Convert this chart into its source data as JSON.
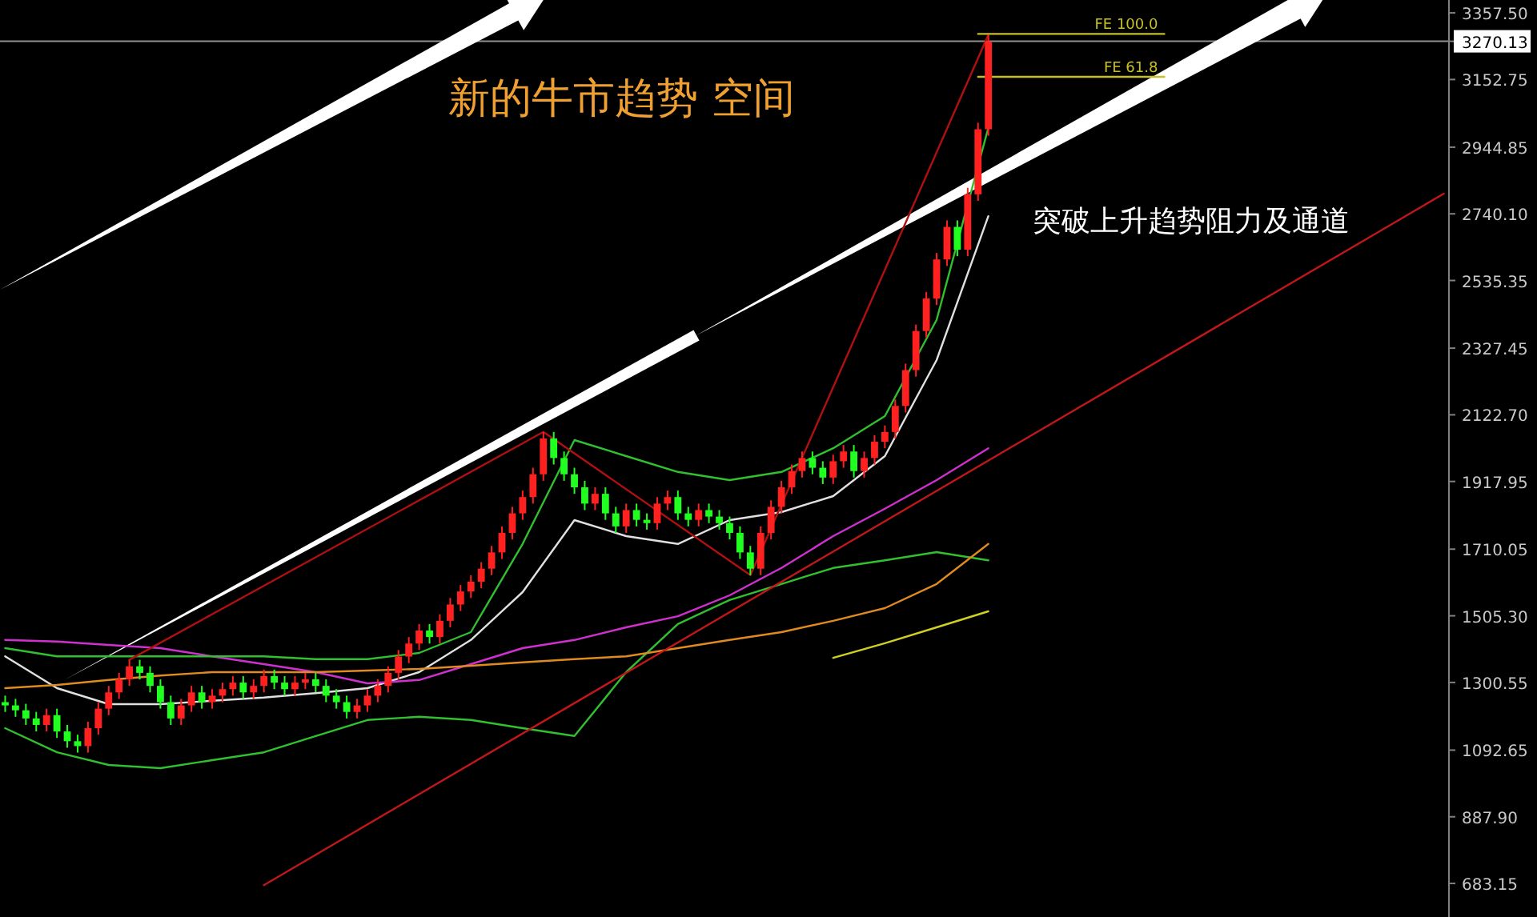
{
  "chart_data": {
    "type": "candlestick",
    "categories": [
      null,
      null,
      null,
      null,
      null,
      null,
      null,
      null,
      null,
      null,
      null,
      null,
      null,
      null,
      null,
      null,
      null,
      null,
      null,
      null,
      null,
      null,
      null,
      null,
      null,
      null,
      null,
      null,
      null,
      null,
      null,
      null,
      null,
      null,
      null,
      null,
      null,
      null,
      null,
      null,
      null,
      null,
      null,
      null,
      null,
      null,
      null,
      null,
      null,
      null,
      null,
      null,
      null,
      null,
      null,
      null,
      null,
      null,
      null,
      null,
      null,
      null,
      null,
      null,
      null,
      null,
      null,
      null,
      null,
      null,
      null,
      null,
      null,
      null,
      null,
      null,
      null,
      null,
      null,
      null,
      null,
      null,
      null,
      null,
      null,
      null,
      null,
      null,
      null,
      null,
      null,
      null,
      null,
      null,
      null,
      null,
      null,
      null,
      null,
      null,
      null,
      null,
      null,
      null,
      null,
      null,
      null,
      null,
      null,
      null,
      null,
      null,
      null,
      null,
      null,
      null,
      null,
      null,
      null,
      null,
      null,
      null,
      null,
      null,
      null,
      null,
      null,
      null,
      null,
      null,
      null,
      null,
      null,
      null,
      null,
      null,
      null,
      null,
      null,
      null
    ],
    "ohlc": [
      [
        1240,
        1260,
        1210,
        1230
      ],
      [
        1230,
        1250,
        1195,
        1215
      ],
      [
        1215,
        1235,
        1170,
        1190
      ],
      [
        1190,
        1210,
        1150,
        1170
      ],
      [
        1170,
        1220,
        1150,
        1200
      ],
      [
        1200,
        1220,
        1130,
        1150
      ],
      [
        1150,
        1170,
        1100,
        1120
      ],
      [
        1120,
        1140,
        1085,
        1105
      ],
      [
        1105,
        1180,
        1085,
        1160
      ],
      [
        1160,
        1240,
        1140,
        1220
      ],
      [
        1220,
        1290,
        1200,
        1270
      ],
      [
        1270,
        1330,
        1250,
        1310
      ],
      [
        1310,
        1370,
        1290,
        1350
      ],
      [
        1350,
        1370,
        1310,
        1330
      ],
      [
        1330,
        1350,
        1270,
        1290
      ],
      [
        1290,
        1310,
        1220,
        1240
      ],
      [
        1240,
        1260,
        1170,
        1190
      ],
      [
        1190,
        1250,
        1170,
        1230
      ],
      [
        1230,
        1290,
        1210,
        1270
      ],
      [
        1270,
        1290,
        1220,
        1240
      ],
      [
        1240,
        1280,
        1220,
        1260
      ],
      [
        1260,
        1300,
        1240,
        1280
      ],
      [
        1280,
        1320,
        1260,
        1300
      ],
      [
        1300,
        1320,
        1250,
        1270
      ],
      [
        1270,
        1310,
        1250,
        1290
      ],
      [
        1290,
        1340,
        1270,
        1320
      ],
      [
        1320,
        1340,
        1280,
        1300
      ],
      [
        1300,
        1320,
        1260,
        1280
      ],
      [
        1280,
        1320,
        1260,
        1300
      ],
      [
        1300,
        1330,
        1280,
        1310
      ],
      [
        1310,
        1330,
        1270,
        1290
      ],
      [
        1290,
        1310,
        1240,
        1260
      ],
      [
        1260,
        1280,
        1220,
        1240
      ],
      [
        1240,
        1260,
        1190,
        1210
      ],
      [
        1210,
        1250,
        1190,
        1230
      ],
      [
        1230,
        1280,
        1210,
        1260
      ],
      [
        1260,
        1310,
        1240,
        1290
      ],
      [
        1290,
        1350,
        1270,
        1330
      ],
      [
        1330,
        1400,
        1310,
        1380
      ],
      [
        1380,
        1440,
        1360,
        1420
      ],
      [
        1420,
        1480,
        1400,
        1460
      ],
      [
        1460,
        1480,
        1420,
        1440
      ],
      [
        1440,
        1510,
        1420,
        1490
      ],
      [
        1490,
        1560,
        1470,
        1540
      ],
      [
        1540,
        1600,
        1520,
        1580
      ],
      [
        1580,
        1630,
        1560,
        1610
      ],
      [
        1610,
        1670,
        1590,
        1650
      ],
      [
        1650,
        1720,
        1630,
        1700
      ],
      [
        1700,
        1780,
        1680,
        1760
      ],
      [
        1760,
        1840,
        1740,
        1820
      ],
      [
        1820,
        1890,
        1800,
        1870
      ],
      [
        1870,
        1960,
        1850,
        1940
      ],
      [
        1940,
        2070,
        1920,
        2050
      ],
      [
        2050,
        2070,
        1970,
        1990
      ],
      [
        1990,
        2010,
        1920,
        1940
      ],
      [
        1940,
        1960,
        1880,
        1900
      ],
      [
        1900,
        1920,
        1830,
        1850
      ],
      [
        1850,
        1900,
        1830,
        1880
      ],
      [
        1880,
        1900,
        1800,
        1820
      ],
      [
        1820,
        1840,
        1760,
        1780
      ],
      [
        1780,
        1850,
        1760,
        1830
      ],
      [
        1830,
        1850,
        1780,
        1800
      ],
      [
        1800,
        1820,
        1770,
        1790
      ],
      [
        1790,
        1870,
        1770,
        1850
      ],
      [
        1850,
        1890,
        1830,
        1870
      ],
      [
        1870,
        1890,
        1800,
        1820
      ],
      [
        1820,
        1840,
        1780,
        1800
      ],
      [
        1800,
        1850,
        1780,
        1830
      ],
      [
        1830,
        1850,
        1790,
        1810
      ],
      [
        1810,
        1830,
        1770,
        1790
      ],
      [
        1790,
        1810,
        1740,
        1760
      ],
      [
        1760,
        1780,
        1680,
        1700
      ],
      [
        1700,
        1720,
        1630,
        1650
      ],
      [
        1650,
        1780,
        1630,
        1760
      ],
      [
        1760,
        1860,
        1740,
        1840
      ],
      [
        1840,
        1920,
        1820,
        1900
      ],
      [
        1900,
        1970,
        1880,
        1950
      ],
      [
        1950,
        2010,
        1930,
        1990
      ],
      [
        1990,
        2010,
        1940,
        1960
      ],
      [
        1960,
        1980,
        1910,
        1930
      ],
      [
        1930,
        2000,
        1910,
        1980
      ],
      [
        1980,
        2030,
        1960,
        2010
      ],
      [
        2010,
        2030,
        1930,
        1950
      ],
      [
        1950,
        2010,
        1930,
        1990
      ],
      [
        1990,
        2060,
        1970,
        2040
      ],
      [
        2040,
        2090,
        2020,
        2070
      ],
      [
        2070,
        2170,
        2050,
        2150
      ],
      [
        2150,
        2280,
        2130,
        2260
      ],
      [
        2260,
        2400,
        2240,
        2380
      ],
      [
        2380,
        2500,
        2360,
        2480
      ],
      [
        2480,
        2620,
        2460,
        2600
      ],
      [
        2600,
        2720,
        2580,
        2700
      ],
      [
        2700,
        2720,
        2610,
        2630
      ],
      [
        2630,
        2820,
        2610,
        2800
      ],
      [
        2800,
        3020,
        2780,
        3000
      ],
      [
        3000,
        3290,
        2980,
        3270.13
      ],
      null,
      null,
      null,
      null,
      null,
      null,
      null,
      null,
      null,
      null,
      null,
      null,
      null,
      null,
      null,
      null,
      null,
      null,
      null,
      null,
      null,
      null,
      null,
      null,
      null,
      null,
      null,
      null,
      null,
      null,
      null,
      null,
      null,
      null,
      null,
      null,
      null,
      null,
      null,
      null,
      null,
      null,
      null,
      null
    ],
    "colors": [
      "#20ff20",
      "#20ff20",
      "#20ff20",
      "#20ff20",
      "#ff2020",
      "#20ff20",
      "#20ff20",
      "#20ff20",
      "#ff2020",
      "#ff2020",
      "#ff2020",
      "#ff2020",
      "#ff2020",
      "#20ff20",
      "#20ff20",
      "#20ff20",
      "#20ff20",
      "#ff2020",
      "#ff2020",
      "#20ff20",
      "#ff2020",
      "#ff2020",
      "#ff2020",
      "#20ff20",
      "#ff2020",
      "#ff2020",
      "#20ff20",
      "#20ff20",
      "#ff2020",
      "#ff2020",
      "#20ff20",
      "#20ff20",
      "#20ff20",
      "#20ff20",
      "#ff2020",
      "#ff2020",
      "#ff2020",
      "#ff2020",
      "#ff2020",
      "#ff2020",
      "#ff2020",
      "#20ff20",
      "#ff2020",
      "#ff2020",
      "#ff2020",
      "#ff2020",
      "#ff2020",
      "#ff2020",
      "#ff2020",
      "#ff2020",
      "#ff2020",
      "#ff2020",
      "#ff2020",
      "#20ff20",
      "#20ff20",
      "#20ff20",
      "#20ff20",
      "#ff2020",
      "#20ff20",
      "#20ff20",
      "#ff2020",
      "#20ff20",
      "#20ff20",
      "#ff2020",
      "#ff2020",
      "#20ff20",
      "#20ff20",
      "#ff2020",
      "#20ff20",
      "#20ff20",
      "#20ff20",
      "#20ff20",
      "#20ff20",
      "#ff2020",
      "#ff2020",
      "#ff2020",
      "#ff2020",
      "#ff2020",
      "#20ff20",
      "#20ff20",
      "#ff2020",
      "#ff2020",
      "#20ff20",
      "#ff2020",
      "#ff2020",
      "#ff2020",
      "#ff2020",
      "#ff2020",
      "#ff2020",
      "#ff2020",
      "#ff2020",
      "#ff2020",
      "#20ff20",
      "#ff2020",
      "#ff2020",
      "#ff2020",
      null,
      null,
      null,
      null,
      null,
      null,
      null,
      null,
      null,
      null,
      null,
      null,
      null,
      null,
      null,
      null,
      null,
      null,
      null,
      null,
      null,
      null,
      null,
      null,
      null,
      null,
      null,
      null,
      null,
      null,
      null,
      null,
      null,
      null,
      null,
      null,
      null,
      null,
      null,
      null,
      null,
      null,
      null,
      null
    ],
    "series": [
      {
        "type": "line",
        "color": "#e0e0e0",
        "values": [
          1381,
          null,
          null,
          null,
          null,
          1283,
          null,
          null,
          null,
          null,
          1234,
          null,
          null,
          null,
          null,
          1234,
          null,
          null,
          null,
          null,
          1244,
          null,
          null,
          null,
          null,
          1254,
          null,
          null,
          null,
          null,
          1268,
          null,
          null,
          null,
          null,
          1283,
          null,
          null,
          null,
          null,
          1332,
          null,
          null,
          null,
          null,
          1431,
          null,
          null,
          null,
          null,
          1578,
          null,
          null,
          null,
          null,
          1799,
          null,
          null,
          null,
          null,
          1750,
          null,
          null,
          null,
          null,
          1726,
          null,
          null,
          null,
          null,
          1799,
          null,
          null,
          null,
          null,
          1824,
          null,
          null,
          null,
          null,
          1873,
          null,
          null,
          null,
          null,
          1996,
          null,
          null,
          null,
          null,
          2291,
          null,
          null,
          null,
          null,
          2733,
          null,
          null,
          null,
          null,
          null,
          null,
          null,
          null,
          null,
          null,
          null,
          null,
          null,
          null,
          null,
          null,
          null,
          null,
          null,
          null,
          null,
          null,
          null,
          null,
          null,
          null,
          null,
          null,
          null,
          null,
          null,
          null,
          null,
          null,
          null,
          null,
          null,
          null,
          null,
          null,
          null,
          null,
          null,
          null
        ]
      },
      {
        "type": "line",
        "color": "#d030d0",
        "values": [
          1431,
          null,
          null,
          null,
          null,
          1426,
          null,
          null,
          null,
          null,
          1416,
          null,
          null,
          null,
          null,
          1406,
          null,
          null,
          null,
          null,
          1381,
          null,
          null,
          null,
          null,
          1357,
          null,
          null,
          null,
          null,
          1332,
          null,
          null,
          null,
          null,
          1298,
          null,
          null,
          null,
          null,
          1308,
          null,
          null,
          null,
          null,
          1357,
          null,
          null,
          null,
          null,
          1406,
          null,
          null,
          null,
          null,
          1431,
          null,
          null,
          null,
          null,
          1470,
          null,
          null,
          null,
          null,
          1504,
          null,
          null,
          null,
          null,
          1568,
          null,
          null,
          null,
          null,
          1652,
          null,
          null,
          null,
          null,
          1750,
          null,
          null,
          null,
          null,
          1834,
          null,
          null,
          null,
          null,
          1922,
          null,
          null,
          null,
          null,
          2020,
          null,
          null,
          null,
          null,
          null,
          null,
          null,
          null,
          null,
          null,
          null,
          null,
          null,
          null,
          null,
          null,
          null,
          null,
          null,
          null,
          null,
          null,
          null,
          null,
          null,
          null,
          null,
          null,
          null,
          null,
          null,
          null,
          null,
          null,
          null,
          null,
          null,
          null,
          null,
          null,
          null,
          null,
          null,
          null
        ]
      },
      {
        "type": "line",
        "color": "#30c030",
        "values": [
          1406,
          null,
          null,
          null,
          null,
          1381,
          null,
          null,
          null,
          null,
          1381,
          null,
          null,
          null,
          null,
          1381,
          null,
          null,
          null,
          null,
          1381,
          null,
          null,
          null,
          null,
          1381,
          null,
          null,
          null,
          null,
          1372,
          null,
          null,
          null,
          null,
          1372,
          null,
          null,
          null,
          null,
          1391,
          null,
          null,
          null,
          null,
          1455,
          null,
          null,
          null,
          null,
          1726,
          null,
          null,
          null,
          null,
          2045,
          null,
          null,
          null,
          null,
          1996,
          null,
          null,
          null,
          null,
          1947,
          null,
          null,
          null,
          null,
          1922,
          null,
          null,
          null,
          null,
          1947,
          null,
          null,
          null,
          null,
          2020,
          null,
          null,
          null,
          null,
          2119,
          null,
          null,
          null,
          null,
          2414,
          null,
          null,
          null,
          null,
          3004,
          null,
          null,
          null,
          null,
          null,
          null,
          null,
          null,
          null,
          null,
          null,
          null,
          null,
          null,
          null,
          null,
          null,
          null,
          null,
          null,
          null,
          null,
          null,
          null,
          null,
          null,
          null,
          null,
          null,
          null,
          null,
          null,
          null,
          null,
          null,
          null,
          null,
          null,
          null,
          null,
          null,
          null,
          null,
          null
        ]
      },
      {
        "type": "line",
        "color": "#30c030",
        "values": [
          1160,
          null,
          null,
          null,
          null,
          1086,
          null,
          null,
          null,
          null,
          1047,
          null,
          null,
          null,
          null,
          1037,
          null,
          null,
          null,
          null,
          1062,
          null,
          null,
          null,
          null,
          1086,
          null,
          null,
          null,
          null,
          1136,
          null,
          null,
          null,
          null,
          1185,
          null,
          null,
          null,
          null,
          1195,
          null,
          null,
          null,
          null,
          1185,
          null,
          null,
          null,
          null,
          1160,
          null,
          null,
          null,
          null,
          1136,
          null,
          null,
          null,
          null,
          1332,
          null,
          null,
          null,
          null,
          1480,
          null,
          null,
          null,
          null,
          1554,
          null,
          null,
          null,
          null,
          1603,
          null,
          null,
          null,
          null,
          1652,
          null,
          null,
          null,
          null,
          1676,
          null,
          null,
          null,
          null,
          1701,
          null,
          null,
          null,
          null,
          1676,
          null,
          null,
          null,
          null,
          null,
          null,
          null,
          null,
          null,
          null,
          null,
          null,
          null,
          null,
          null,
          null,
          null,
          null,
          null,
          null,
          null,
          null,
          null,
          null,
          null,
          null,
          null,
          null,
          null,
          null,
          null,
          null,
          null,
          null,
          null,
          null,
          null,
          null,
          null,
          null,
          null,
          null,
          null,
          null
        ]
      },
      {
        "type": "line",
        "color": "#e08a20",
        "values": [
          1283,
          null,
          null,
          null,
          null,
          1293,
          null,
          null,
          null,
          null,
          1308,
          null,
          null,
          null,
          null,
          1322,
          null,
          null,
          null,
          null,
          1332,
          null,
          null,
          null,
          null,
          1332,
          null,
          null,
          null,
          null,
          1332,
          null,
          null,
          null,
          null,
          1337,
          null,
          null,
          null,
          null,
          1342,
          null,
          null,
          null,
          null,
          1352,
          null,
          null,
          null,
          null,
          1362,
          null,
          null,
          null,
          null,
          1372,
          null,
          null,
          null,
          null,
          1381,
          null,
          null,
          null,
          null,
          1406,
          null,
          null,
          null,
          null,
          1431,
          null,
          null,
          null,
          null,
          1455,
          null,
          null,
          null,
          null,
          1490,
          null,
          null,
          null,
          null,
          1529,
          null,
          null,
          null,
          null,
          1603,
          null,
          null,
          null,
          null,
          1726,
          null,
          null,
          null,
          null,
          null,
          null,
          null,
          null,
          null,
          null,
          null,
          null,
          null,
          null,
          null,
          null,
          null,
          null,
          null,
          null,
          null,
          null,
          null,
          null,
          null,
          null,
          null,
          null,
          null,
          null,
          null,
          null,
          null,
          null,
          null,
          null,
          null,
          null,
          null,
          null,
          null,
          null,
          null,
          null
        ]
      },
      {
        "type": "line",
        "color": "#d0d020",
        "values": [
          null,
          null,
          null,
          null,
          null,
          null,
          null,
          null,
          null,
          null,
          null,
          null,
          null,
          null,
          null,
          null,
          null,
          null,
          null,
          null,
          null,
          null,
          null,
          null,
          null,
          null,
          null,
          null,
          null,
          null,
          null,
          null,
          null,
          null,
          null,
          null,
          null,
          null,
          null,
          null,
          null,
          null,
          null,
          null,
          null,
          null,
          null,
          null,
          null,
          null,
          null,
          null,
          null,
          null,
          null,
          null,
          null,
          null,
          null,
          null,
          null,
          null,
          null,
          null,
          null,
          null,
          null,
          null,
          null,
          null,
          null,
          null,
          null,
          null,
          null,
          null,
          null,
          null,
          null,
          null,
          1376,
          null,
          null,
          null,
          null,
          1421,
          null,
          null,
          null,
          null,
          1470,
          null,
          null,
          null,
          null,
          1519,
          null,
          null,
          null,
          null,
          null,
          null,
          null,
          null,
          null,
          null,
          null,
          null,
          null,
          null,
          null,
          null,
          null,
          null,
          null,
          null,
          null,
          null,
          null,
          null,
          null,
          null,
          null,
          null,
          null,
          null,
          null,
          null,
          null,
          null,
          null,
          null,
          null,
          null,
          null,
          null,
          null,
          null,
          null,
          null
        ]
      },
      {
        "type": "line",
        "color": "#b01010",
        "values": [
          null,
          null,
          null,
          null,
          null,
          null,
          null,
          null,
          null,
          null,
          null,
          null,
          1370,
          null,
          null,
          null,
          null,
          null,
          null,
          null,
          null,
          null,
          null,
          null,
          null,
          null,
          null,
          null,
          null,
          null,
          null,
          null,
          null,
          null,
          null,
          null,
          null,
          null,
          null,
          null,
          null,
          null,
          null,
          null,
          null,
          null,
          null,
          null,
          null,
          null,
          null,
          null,
          2070,
          null,
          null,
          null,
          null,
          null,
          null,
          null,
          null,
          null,
          null,
          null,
          null,
          null,
          null,
          null,
          null,
          null,
          null,
          null,
          1630,
          null,
          null,
          null,
          null,
          null,
          null,
          null,
          null,
          null,
          null,
          null,
          null,
          null,
          null,
          null,
          null,
          null,
          null,
          null,
          null,
          null,
          null,
          3290,
          null,
          null,
          null,
          null,
          null,
          null,
          null,
          null,
          null,
          null,
          null,
          null,
          null,
          null,
          null,
          null,
          null,
          null,
          null,
          null,
          null,
          null,
          null,
          null,
          null,
          null,
          null,
          null,
          null,
          null,
          null,
          null,
          null,
          null,
          null,
          null,
          null,
          null,
          null,
          null,
          null,
          null,
          null,
          null
        ]
      },
      {
        "type": "line",
        "color": "#c01818",
        "values": [
          null,
          null,
          null,
          null,
          null,
          null,
          null,
          null,
          null,
          null,
          null,
          null,
          null,
          null,
          null,
          null,
          null,
          null,
          null,
          null,
          null,
          null,
          null,
          null,
          null,
          678,
          null,
          null,
          null,
          null,
          null,
          null,
          null,
          null,
          null,
          null,
          null,
          null,
          null,
          null,
          null,
          null,
          null,
          null,
          null,
          null,
          null,
          null,
          null,
          null,
          null,
          null,
          null,
          null,
          null,
          null,
          null,
          null,
          null,
          null,
          null,
          null,
          null,
          null,
          null,
          null,
          null,
          null,
          null,
          null,
          null,
          null,
          null,
          null,
          null,
          null,
          null,
          null,
          null,
          null,
          null,
          null,
          null,
          null,
          null,
          null,
          null,
          null,
          null,
          null,
          null,
          null,
          null,
          null,
          null,
          null,
          null,
          null,
          null,
          null,
          null,
          null,
          null,
          null,
          null,
          null,
          null,
          null,
          null,
          null,
          null,
          null,
          null,
          null,
          null,
          null,
          null,
          null,
          null,
          null,
          null,
          null,
          null,
          null,
          null,
          null,
          null,
          null,
          null,
          null,
          null,
          null,
          null,
          null,
          null,
          null,
          null,
          null,
          null,
          2802
        ]
      },
      {
        "type": "line",
        "color": "#c8c020",
        "name": "FE 100.0",
        "values": [
          null,
          null,
          null,
          null,
          null,
          null,
          null,
          null,
          null,
          null,
          null,
          null,
          null,
          null,
          null,
          null,
          null,
          null,
          null,
          null,
          null,
          null,
          null,
          null,
          null,
          null,
          null,
          null,
          null,
          null,
          null,
          null,
          null,
          null,
          null,
          null,
          null,
          null,
          null,
          null,
          null,
          null,
          null,
          null,
          null,
          null,
          null,
          null,
          null,
          null,
          null,
          null,
          null,
          null,
          null,
          null,
          null,
          null,
          null,
          null,
          null,
          null,
          null,
          null,
          null,
          null,
          null,
          null,
          null,
          null,
          null,
          null,
          null,
          null,
          null,
          null,
          null,
          null,
          null,
          null,
          null,
          null,
          null,
          null,
          null,
          null,
          null,
          null,
          null,
          null,
          null,
          null,
          null,
          null,
          3293,
          null,
          null,
          null,
          null,
          null,
          null,
          null,
          null,
          null,
          null,
          null,
          null,
          null,
          null,
          null,
          null,
          null,
          3293,
          null,
          null,
          null,
          null,
          null,
          null,
          null,
          null,
          null,
          null,
          null,
          null,
          null,
          null,
          null,
          null,
          null,
          null,
          null,
          null,
          null,
          null,
          null,
          null,
          null,
          null,
          null
        ]
      },
      {
        "type": "line",
        "color": "#c8c020",
        "name": "FE 61.8",
        "values": [
          null,
          null,
          null,
          null,
          null,
          null,
          null,
          null,
          null,
          null,
          null,
          null,
          null,
          null,
          null,
          null,
          null,
          null,
          null,
          null,
          null,
          null,
          null,
          null,
          null,
          null,
          null,
          null,
          null,
          null,
          null,
          null,
          null,
          null,
          null,
          null,
          null,
          null,
          null,
          null,
          null,
          null,
          null,
          null,
          null,
          null,
          null,
          null,
          null,
          null,
          null,
          null,
          null,
          null,
          null,
          null,
          null,
          null,
          null,
          null,
          null,
          null,
          null,
          null,
          null,
          null,
          null,
          null,
          null,
          null,
          null,
          null,
          null,
          null,
          null,
          null,
          null,
          null,
          null,
          null,
          null,
          null,
          null,
          null,
          null,
          null,
          null,
          null,
          null,
          null,
          null,
          null,
          null,
          null,
          3161,
          null,
          null,
          null,
          null,
          null,
          null,
          null,
          null,
          null,
          null,
          null,
          null,
          null,
          null,
          null,
          null,
          null,
          3161,
          null,
          null,
          null,
          null,
          null,
          null,
          null,
          null,
          null,
          null,
          null,
          null,
          null,
          null,
          null,
          null,
          null,
          null,
          null,
          null,
          null,
          null,
          null,
          null,
          null,
          null,
          null
        ]
      }
    ],
    "ylim": [
      580,
      3397
    ],
    "yticks": [
      {
        "value": 3357.5,
        "label": "3357.50"
      },
      3270.13,
      3152.75,
      2944.85,
      {
        "value": 2740.1,
        "label": "2740.10"
      },
      2535.35,
      2327.45,
      {
        "value": 2122.7,
        "label": "2122.70"
      },
      1917.95,
      1710.05,
      {
        "value": 1505.3,
        "label": "1505.30"
      },
      1300.55,
      1092.65,
      {
        "value": 887.9,
        "label": "887.90"
      },
      683.15
    ],
    "tick_labels": "y",
    "ref_lines": [
      {
        "axis": "y",
        "value": 3270.13,
        "color": "#909090"
      }
    ],
    "annotations": [
      "新的牛市趋势 空间",
      "突破上升趋势阻力及通道"
    ]
  }
}
